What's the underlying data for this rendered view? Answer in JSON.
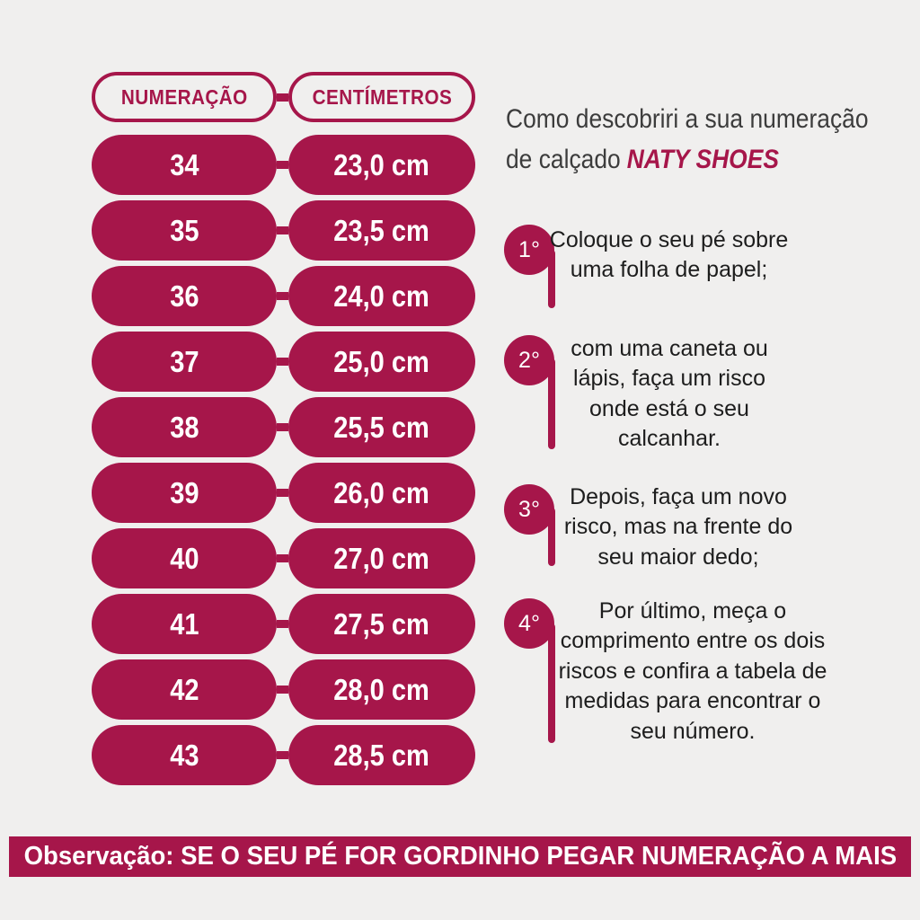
{
  "colors": {
    "crimson": "#a6164a",
    "background": "#f0efee",
    "title_text": "#3c3c3c",
    "step_text": "#1d1d1d",
    "pill_text": "#ffffff"
  },
  "table": {
    "headers": {
      "numeration": "NUMERAÇÃO",
      "centimeters": "CENTÍMETROS"
    },
    "rows": [
      {
        "size": "34",
        "cm": "23,0 cm"
      },
      {
        "size": "35",
        "cm": "23,5 cm"
      },
      {
        "size": "36",
        "cm": "24,0 cm"
      },
      {
        "size": "37",
        "cm": "25,0 cm"
      },
      {
        "size": "38",
        "cm": "25,5 cm"
      },
      {
        "size": "39",
        "cm": "26,0 cm"
      },
      {
        "size": "40",
        "cm": "27,0 cm"
      },
      {
        "size": "41",
        "cm": "27,5 cm"
      },
      {
        "size": "42",
        "cm": "28,0 cm"
      },
      {
        "size": "43",
        "cm": "28,5 cm"
      }
    ]
  },
  "guide": {
    "title_line1": "Como descobriri a sua numeração",
    "title_line2": "de calçado",
    "brand": "NATY SHOES",
    "steps": [
      {
        "label": "1°",
        "text": "Coloque o seu pé sobre uma folha de papel;"
      },
      {
        "label": "2°",
        "text": "com uma caneta ou lápis, faça um risco onde está o seu calcanhar."
      },
      {
        "label": "3°",
        "text": "Depois, faça um novo risco, mas na frente do seu maior dedo;"
      },
      {
        "label": "4°",
        "text": "Por último, meça o comprimento entre os dois riscos e confira a tabela de medidas para encontrar o seu número."
      }
    ]
  },
  "footer": {
    "note": "Observação: SE O SEU PÉ FOR GORDINHO PEGAR NUMERAÇÃO A MAIS"
  }
}
